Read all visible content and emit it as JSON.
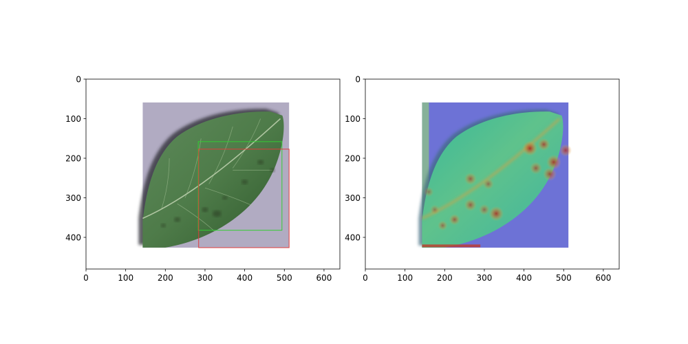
{
  "chart_data": [
    {
      "type": "image",
      "xlim": [
        0,
        640
      ],
      "ylim": [
        480,
        0
      ],
      "x_ticks": [
        0,
        100,
        200,
        300,
        400,
        500,
        600
      ],
      "y_ticks": [
        0,
        100,
        200,
        300,
        400
      ],
      "x_tick_labels": [
        "0",
        "100",
        "200",
        "300",
        "400",
        "500",
        "600"
      ],
      "y_tick_labels": [
        "0",
        "100",
        "200",
        "300",
        "400"
      ],
      "image_extent": {
        "x": [
          143,
          512
        ],
        "y": [
          59,
          426
        ]
      },
      "boxes": [
        {
          "color": "#33cc33",
          "x1": 283,
          "y1": 158,
          "x2": 494,
          "y2": 382
        },
        {
          "color": "#e03c3c",
          "x1": 284,
          "y1": 177,
          "x2": 512,
          "y2": 426
        }
      ]
    },
    {
      "type": "heatmap-overlay",
      "xlim": [
        0,
        640
      ],
      "ylim": [
        480,
        0
      ],
      "x_ticks": [
        0,
        100,
        200,
        300,
        400,
        500,
        600
      ],
      "y_ticks": [
        0,
        100,
        200,
        300,
        400
      ],
      "x_tick_labels": [
        "0",
        "100",
        "200",
        "300",
        "400",
        "500",
        "600"
      ],
      "y_tick_labels": [
        "0",
        "100",
        "200",
        "300",
        "400"
      ],
      "image_extent": {
        "x": [
          143,
          512
        ],
        "y": [
          59,
          426
        ]
      },
      "hotspots": [
        {
          "x": 415,
          "y": 175,
          "r": 12,
          "v": 1.0
        },
        {
          "x": 450,
          "y": 165,
          "r": 10,
          "v": 0.8
        },
        {
          "x": 475,
          "y": 210,
          "r": 12,
          "v": 0.9
        },
        {
          "x": 505,
          "y": 180,
          "r": 10,
          "v": 0.8
        },
        {
          "x": 430,
          "y": 225,
          "r": 10,
          "v": 0.7
        },
        {
          "x": 465,
          "y": 240,
          "r": 11,
          "v": 0.8
        },
        {
          "x": 330,
          "y": 340,
          "r": 12,
          "v": 0.9
        },
        {
          "x": 300,
          "y": 330,
          "r": 9,
          "v": 0.6
        },
        {
          "x": 265,
          "y": 318,
          "r": 10,
          "v": 0.7
        },
        {
          "x": 225,
          "y": 355,
          "r": 9,
          "v": 0.7
        },
        {
          "x": 195,
          "y": 370,
          "r": 8,
          "v": 0.6
        },
        {
          "x": 175,
          "y": 330,
          "r": 8,
          "v": 0.5
        },
        {
          "x": 265,
          "y": 252,
          "r": 10,
          "v": 0.7
        },
        {
          "x": 310,
          "y": 265,
          "r": 9,
          "v": 0.6
        },
        {
          "x": 160,
          "y": 285,
          "r": 8,
          "v": 0.5
        }
      ]
    }
  ]
}
